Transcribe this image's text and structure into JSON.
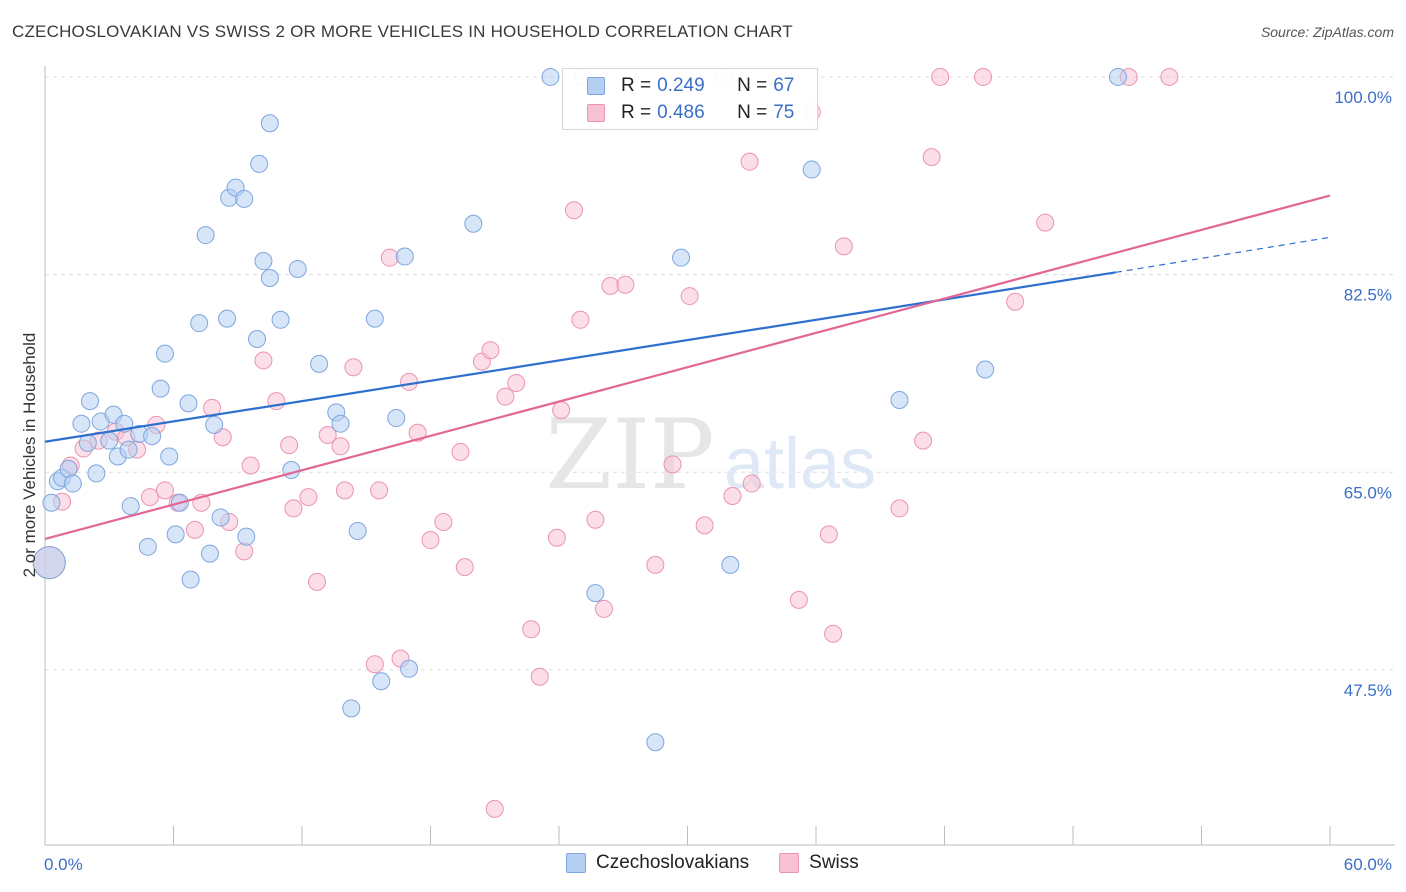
{
  "title": "CZECHOSLOVAKIAN VS SWISS 2 OR MORE VEHICLES IN HOUSEHOLD CORRELATION CHART",
  "source": "Source: ZipAtlas.com",
  "watermark": {
    "zip": "ZIP",
    "atlas": "atlas"
  },
  "legend": {
    "czech": {
      "r_label": "R =",
      "r_value": "0.249",
      "n_label": "N =",
      "n_value": "67"
    },
    "swiss": {
      "r_label": "R =",
      "r_value": "0.486",
      "n_label": "N =",
      "n_value": "75"
    }
  },
  "bottom_legend": {
    "czech": "Czechoslovakians",
    "swiss": "Swiss"
  },
  "colors": {
    "czech_fill": "#b5cff3",
    "czech_stroke": "#7ea6df",
    "czech_line": "#2f6fcf",
    "swiss_fill": "#f7c3d4",
    "swiss_stroke": "#ec93b1",
    "swiss_line": "#e26796",
    "tick_label": "#3b6fc7",
    "grid": "#dcdcdc"
  },
  "chart_data": {
    "type": "scatter",
    "title": "CZECHOSLOVAKIAN VS SWISS 2 OR MORE VEHICLES IN HOUSEHOLD CORRELATION CHART",
    "xlabel": "",
    "ylabel": "2 or more Vehicles in Household",
    "xlim": [
      0,
      60
    ],
    "ylim": [
      32,
      101.5
    ],
    "x_tick_labels": [
      "0.0%",
      "60.0%"
    ],
    "y_ticks": [
      {
        "value": 47.5,
        "label": "47.5%"
      },
      {
        "value": 65.0,
        "label": "65.0%"
      },
      {
        "value": 82.5,
        "label": "82.5%"
      },
      {
        "value": 100.0,
        "label": "100.0%"
      }
    ],
    "grid": true,
    "series": [
      {
        "name": "Czechoslovakians",
        "trend": {
          "x0": 0,
          "y0": 67.7,
          "x1": 50,
          "y1": 82.7,
          "dash_to_x": 60,
          "dash_to_y": 85.8
        },
        "points": [
          [
            0.3,
            62.3,
            1
          ],
          [
            0.6,
            64.2,
            1
          ],
          [
            0.8,
            64.5,
            1
          ],
          [
            1.1,
            65.3,
            1
          ],
          [
            1.3,
            64.0,
            1
          ],
          [
            1.7,
            69.3,
            1
          ],
          [
            2.0,
            67.6,
            1
          ],
          [
            2.1,
            71.3,
            1
          ],
          [
            2.4,
            64.9,
            1
          ],
          [
            2.6,
            69.5,
            1
          ],
          [
            3.0,
            67.8,
            1
          ],
          [
            3.2,
            70.1,
            1
          ],
          [
            3.4,
            66.4,
            1
          ],
          [
            3.7,
            69.3,
            1
          ],
          [
            3.9,
            67.0,
            1
          ],
          [
            4.0,
            62.0,
            1
          ],
          [
            4.4,
            68.4,
            1
          ],
          [
            4.8,
            58.4,
            1
          ],
          [
            5.0,
            68.2,
            1
          ],
          [
            5.4,
            72.4,
            1
          ],
          [
            5.6,
            75.5,
            1
          ],
          [
            5.8,
            66.4,
            1
          ],
          [
            6.1,
            59.5,
            1
          ],
          [
            6.3,
            62.3,
            1
          ],
          [
            6.7,
            71.1,
            1
          ],
          [
            6.8,
            55.5,
            1
          ],
          [
            7.2,
            78.2,
            1
          ],
          [
            7.5,
            86.0,
            1
          ],
          [
            7.7,
            57.8,
            1
          ],
          [
            7.9,
            69.2,
            1
          ],
          [
            8.2,
            61.0,
            1
          ],
          [
            8.5,
            78.6,
            1
          ],
          [
            8.6,
            89.3,
            1
          ],
          [
            8.9,
            90.2,
            1
          ],
          [
            9.3,
            89.2,
            1
          ],
          [
            9.4,
            59.3,
            1
          ],
          [
            9.9,
            76.8,
            1
          ],
          [
            10.0,
            92.3,
            1
          ],
          [
            10.2,
            83.7,
            1
          ],
          [
            10.5,
            82.2,
            1
          ],
          [
            10.5,
            95.9,
            1
          ],
          [
            11.0,
            78.5,
            1
          ],
          [
            11.5,
            65.2,
            1
          ],
          [
            11.8,
            83.0,
            1
          ],
          [
            12.8,
            74.6,
            1
          ],
          [
            13.6,
            70.3,
            1
          ],
          [
            13.8,
            69.3,
            1
          ],
          [
            14.3,
            44.1,
            1
          ],
          [
            14.6,
            59.8,
            1
          ],
          [
            15.4,
            78.6,
            1
          ],
          [
            15.7,
            46.5,
            1
          ],
          [
            16.4,
            69.8,
            1
          ],
          [
            16.8,
            84.1,
            1
          ],
          [
            17.0,
            47.6,
            1
          ],
          [
            20.0,
            87.0,
            1
          ],
          [
            23.6,
            100.0,
            1
          ],
          [
            25.1,
            100.0,
            1
          ],
          [
            25.7,
            54.3,
            1
          ],
          [
            28.5,
            41.1,
            1
          ],
          [
            29.7,
            84.0,
            1
          ],
          [
            32.0,
            56.8,
            1
          ],
          [
            35.8,
            91.8,
            1
          ],
          [
            39.9,
            71.4,
            1
          ],
          [
            43.9,
            74.1,
            1
          ],
          [
            50.1,
            100.0,
            1
          ],
          [
            0.2,
            57.0,
            3
          ]
        ]
      },
      {
        "name": "Swiss",
        "trend": {
          "x0": 0,
          "y0": 59.1,
          "x1": 60,
          "y1": 89.5
        },
        "points": [
          [
            0.2,
            57.0,
            3
          ],
          [
            0.8,
            62.4,
            1
          ],
          [
            1.2,
            65.6,
            1
          ],
          [
            1.8,
            67.1,
            1
          ],
          [
            2.5,
            67.8,
            1
          ],
          [
            3.3,
            68.6,
            1
          ],
          [
            3.8,
            68.1,
            1
          ],
          [
            4.3,
            67.0,
            1
          ],
          [
            4.9,
            62.8,
            1
          ],
          [
            5.2,
            69.2,
            1
          ],
          [
            5.6,
            63.4,
            1
          ],
          [
            6.2,
            62.3,
            1
          ],
          [
            7.0,
            59.9,
            1
          ],
          [
            7.3,
            62.3,
            1
          ],
          [
            7.8,
            70.7,
            1
          ],
          [
            8.3,
            68.1,
            1
          ],
          [
            8.6,
            60.6,
            1
          ],
          [
            9.3,
            58.0,
            1
          ],
          [
            9.6,
            65.6,
            1
          ],
          [
            10.2,
            74.9,
            1
          ],
          [
            10.8,
            71.3,
            1
          ],
          [
            11.4,
            67.4,
            1
          ],
          [
            11.6,
            61.8,
            1
          ],
          [
            12.3,
            62.8,
            1
          ],
          [
            12.7,
            55.3,
            1
          ],
          [
            13.2,
            68.3,
            1
          ],
          [
            13.8,
            67.3,
            1
          ],
          [
            14.0,
            63.4,
            1
          ],
          [
            14.4,
            74.3,
            1
          ],
          [
            15.4,
            48.0,
            1
          ],
          [
            15.6,
            63.4,
            1
          ],
          [
            16.1,
            84.0,
            1
          ],
          [
            16.6,
            48.5,
            1
          ],
          [
            17.0,
            73.0,
            1
          ],
          [
            17.4,
            68.5,
            1
          ],
          [
            18.0,
            59.0,
            1
          ],
          [
            18.6,
            60.6,
            1
          ],
          [
            19.4,
            66.8,
            1
          ],
          [
            19.6,
            56.6,
            1
          ],
          [
            20.4,
            74.8,
            1
          ],
          [
            20.8,
            75.8,
            1
          ],
          [
            21.5,
            71.7,
            1
          ],
          [
            22.0,
            72.9,
            1
          ],
          [
            22.7,
            51.1,
            1
          ],
          [
            23.1,
            46.9,
            1
          ],
          [
            23.9,
            59.2,
            1
          ],
          [
            24.1,
            70.5,
            1
          ],
          [
            24.7,
            88.2,
            1
          ],
          [
            25.0,
            78.5,
            1
          ],
          [
            25.7,
            60.8,
            1
          ],
          [
            26.1,
            52.9,
            1
          ],
          [
            26.4,
            81.5,
            1
          ],
          [
            27.1,
            81.6,
            1
          ],
          [
            28.5,
            56.8,
            1
          ],
          [
            29.3,
            65.7,
            1
          ],
          [
            30.1,
            80.6,
            1
          ],
          [
            30.8,
            60.3,
            1
          ],
          [
            31.7,
            100.0,
            1
          ],
          [
            32.1,
            62.9,
            1
          ],
          [
            32.9,
            92.5,
            1
          ],
          [
            33.0,
            64.0,
            1
          ],
          [
            35.2,
            53.7,
            1
          ],
          [
            35.8,
            96.9,
            1
          ],
          [
            36.6,
            59.5,
            1
          ],
          [
            36.8,
            50.7,
            1
          ],
          [
            37.3,
            85.0,
            1
          ],
          [
            39.9,
            61.8,
            1
          ],
          [
            41.0,
            67.8,
            1
          ],
          [
            41.4,
            92.9,
            1
          ],
          [
            41.8,
            100.0,
            1
          ],
          [
            43.8,
            100.0,
            1
          ],
          [
            45.3,
            80.1,
            1
          ],
          [
            46.7,
            87.1,
            1
          ],
          [
            50.6,
            100.0,
            1
          ],
          [
            52.5,
            100.0,
            1
          ],
          [
            21.0,
            35.2,
            1
          ]
        ]
      }
    ]
  }
}
